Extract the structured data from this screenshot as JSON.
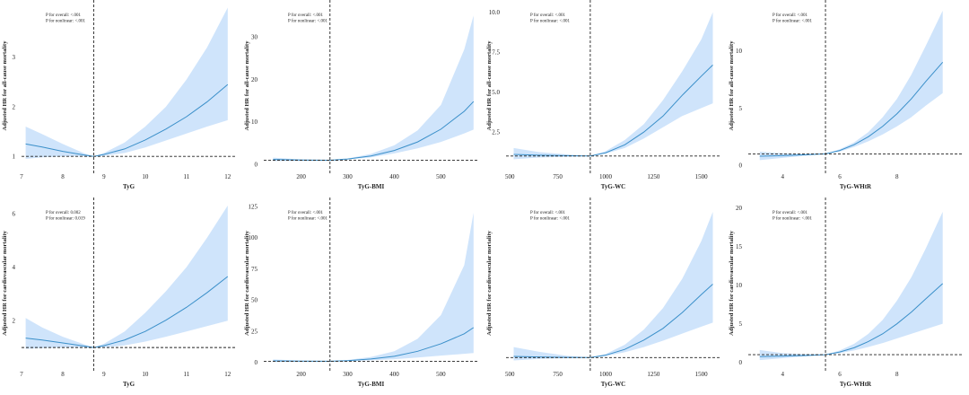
{
  "style": {
    "band_color": "#cfe4fb",
    "curve_color": "#3a8fc9",
    "line_color": "#222222",
    "background": "#ffffff"
  },
  "chart_data": [
    {
      "type": "line",
      "title": "",
      "xlabel": "TyG",
      "ylabel": "Adjusted HR for all-cause mortality",
      "xlim": [
        7,
        12.2
      ],
      "ylim": [
        0.75,
        4.1
      ],
      "xticks": [
        7,
        8,
        9,
        10,
        11,
        12
      ],
      "yticks": [
        1,
        2,
        3
      ],
      "knot": 8.75,
      "ref": 1,
      "pvalues": [
        "P for overall: <.001",
        "P for nonlinear: <.001"
      ],
      "series": [
        {
          "name": "HR",
          "x": [
            7.1,
            7.5,
            8.0,
            8.5,
            8.75,
            9.0,
            9.5,
            10.0,
            10.5,
            11.0,
            11.5,
            12.0
          ],
          "y": [
            1.25,
            1.19,
            1.1,
            1.03,
            1.0,
            1.04,
            1.15,
            1.33,
            1.55,
            1.8,
            2.1,
            2.45
          ]
        },
        {
          "name": "Lower 95% CI",
          "x": [
            7.1,
            7.5,
            8.0,
            8.5,
            8.75,
            9.0,
            9.5,
            10.0,
            10.5,
            11.0,
            11.5,
            12.0
          ],
          "y": [
            0.95,
            0.98,
            1.0,
            1.0,
            1.0,
            1.01,
            1.07,
            1.18,
            1.32,
            1.46,
            1.6,
            1.73
          ]
        },
        {
          "name": "Upper 95% CI",
          "x": [
            7.1,
            7.5,
            8.0,
            8.5,
            8.75,
            9.0,
            9.5,
            10.0,
            10.5,
            11.0,
            11.5,
            12.0
          ],
          "y": [
            1.6,
            1.45,
            1.25,
            1.07,
            1.0,
            1.07,
            1.28,
            1.6,
            2.0,
            2.55,
            3.2,
            4.0
          ]
        }
      ]
    },
    {
      "type": "line",
      "title": "",
      "xlabel": "TyG-BMI",
      "ylabel": "Adjusted HR for all-cause mortality",
      "xlim": [
        120,
        580
      ],
      "ylim": [
        -1,
        38
      ],
      "xticks": [
        200,
        300,
        400,
        500
      ],
      "yticks": [
        0,
        10,
        20,
        30
      ],
      "knot": 262,
      "ref": 1,
      "pvalues": [
        "P for overall: <.001",
        "P for nonlinear: <.001"
      ],
      "series": [
        {
          "name": "HR",
          "x": [
            140,
            200,
            262,
            300,
            350,
            400,
            450,
            500,
            550,
            570
          ],
          "y": [
            1.2,
            1.05,
            1.0,
            1.3,
            2.0,
            3.3,
            5.3,
            8.3,
            12.5,
            14.8
          ]
        },
        {
          "name": "Lower 95% CI",
          "x": [
            140,
            200,
            262,
            300,
            350,
            400,
            450,
            500,
            550,
            570
          ],
          "y": [
            0.8,
            0.9,
            1.0,
            1.2,
            1.7,
            2.6,
            3.8,
            5.3,
            7.3,
            8.2
          ]
        },
        {
          "name": "Upper 95% CI",
          "x": [
            140,
            200,
            262,
            300,
            350,
            400,
            450,
            500,
            550,
            570
          ],
          "y": [
            1.6,
            1.2,
            1.0,
            1.4,
            2.5,
            4.5,
            8.0,
            14.0,
            27.0,
            35.0
          ]
        }
      ]
    },
    {
      "type": "line",
      "title": "",
      "xlabel": "TyG-WC",
      "ylabel": "Adjusted HR for all-cause mortality",
      "xlim": [
        480,
        1600
      ],
      "ylim": [
        0.2,
        10.6
      ],
      "xticks": [
        500,
        750,
        1000,
        1250,
        1500
      ],
      "yticks": [
        2.5,
        5.0,
        7.5,
        10.0
      ],
      "knot": 920,
      "ref": 1,
      "pvalues": [
        "P for overall: <.001",
        "P for nonlinear: <.001"
      ],
      "series": [
        {
          "name": "HR",
          "x": [
            520,
            650,
            800,
            920,
            1000,
            1100,
            1200,
            1300,
            1400,
            1500,
            1560
          ],
          "y": [
            1.1,
            1.05,
            1.02,
            1.0,
            1.2,
            1.7,
            2.5,
            3.5,
            4.8,
            6.0,
            6.7
          ]
        },
        {
          "name": "Lower 95% CI",
          "x": [
            520,
            650,
            800,
            920,
            1000,
            1100,
            1200,
            1300,
            1400,
            1500,
            1560
          ],
          "y": [
            0.8,
            0.9,
            0.95,
            1.0,
            1.15,
            1.5,
            2.1,
            2.8,
            3.5,
            4.0,
            4.3
          ]
        },
        {
          "name": "Upper 95% CI",
          "x": [
            520,
            650,
            800,
            920,
            1000,
            1100,
            1200,
            1300,
            1400,
            1500,
            1560
          ],
          "y": [
            1.5,
            1.25,
            1.1,
            1.0,
            1.3,
            2.0,
            3.0,
            4.5,
            6.3,
            8.3,
            10.0
          ]
        }
      ]
    },
    {
      "type": "line",
      "title": "",
      "xlabel": "TyG-WHtR",
      "ylabel": "Adjusted HR for all-cause mortality",
      "xlim": [
        2.8,
        10.3
      ],
      "ylim": [
        -0.3,
        14.2
      ],
      "xticks": [
        4,
        6,
        8
      ],
      "yticks": [
        0,
        5,
        10
      ],
      "knot": 5.5,
      "ref": 1,
      "pvalues": [
        "P for overall: <.001",
        "P for nonlinear: <.001"
      ],
      "series": [
        {
          "name": "HR",
          "x": [
            3.2,
            4.0,
            4.8,
            5.5,
            6.0,
            6.5,
            7.0,
            7.5,
            8.0,
            8.5,
            9.0,
            9.6
          ],
          "y": [
            0.8,
            0.85,
            0.92,
            1.0,
            1.3,
            1.8,
            2.5,
            3.4,
            4.5,
            5.8,
            7.3,
            9.0
          ]
        },
        {
          "name": "Lower 95% CI",
          "x": [
            3.2,
            4.0,
            4.8,
            5.5,
            6.0,
            6.5,
            7.0,
            7.5,
            8.0,
            8.5,
            9.0,
            9.6
          ],
          "y": [
            0.45,
            0.65,
            0.85,
            1.0,
            1.2,
            1.6,
            2.1,
            2.7,
            3.4,
            4.2,
            5.2,
            6.3
          ]
        },
        {
          "name": "Upper 95% CI",
          "x": [
            3.2,
            4.0,
            4.8,
            5.5,
            6.0,
            6.5,
            7.0,
            7.5,
            8.0,
            8.5,
            9.0,
            9.6
          ],
          "y": [
            1.2,
            1.05,
            1.0,
            1.0,
            1.4,
            2.0,
            2.9,
            4.2,
            5.8,
            7.9,
            10.4,
            13.5
          ]
        }
      ]
    },
    {
      "type": "line",
      "title": "",
      "xlabel": "TyG",
      "ylabel": "Adjusted HR for cardiovascular mortality",
      "xlim": [
        7,
        12.2
      ],
      "ylim": [
        0.3,
        6.5
      ],
      "xticks": [
        7,
        8,
        9,
        10,
        11,
        12
      ],
      "yticks": [
        2,
        4,
        6
      ],
      "knot": 8.75,
      "ref": 1,
      "pvalues": [
        "P for overall: 0.002",
        "P for nonlinear: 0.019"
      ],
      "series": [
        {
          "name": "HR",
          "x": [
            7.1,
            7.5,
            8.0,
            8.5,
            8.75,
            9.0,
            9.5,
            10.0,
            10.5,
            11.0,
            11.5,
            12.0
          ],
          "y": [
            1.35,
            1.28,
            1.17,
            1.06,
            1.0,
            1.07,
            1.28,
            1.6,
            2.02,
            2.5,
            3.05,
            3.65
          ]
        },
        {
          "name": "Lower 95% CI",
          "x": [
            7.1,
            7.5,
            8.0,
            8.5,
            8.75,
            9.0,
            9.5,
            10.0,
            10.5,
            11.0,
            11.5,
            12.0
          ],
          "y": [
            0.95,
            0.98,
            1.0,
            1.0,
            1.0,
            1.0,
            1.08,
            1.22,
            1.4,
            1.6,
            1.8,
            2.0
          ]
        },
        {
          "name": "Upper 95% CI",
          "x": [
            7.1,
            7.5,
            8.0,
            8.5,
            8.75,
            9.0,
            9.5,
            10.0,
            10.5,
            11.0,
            11.5,
            12.0
          ],
          "y": [
            2.1,
            1.75,
            1.4,
            1.13,
            1.0,
            1.14,
            1.6,
            2.3,
            3.1,
            4.0,
            5.1,
            6.3
          ]
        }
      ]
    },
    {
      "type": "line",
      "title": "",
      "xlabel": "TyG-BMI",
      "ylabel": "Adjusted HR for cardiovascular mortality",
      "xlim": [
        120,
        580
      ],
      "ylim": [
        -3,
        130
      ],
      "xticks": [
        200,
        300,
        400,
        500
      ],
      "yticks": [
        0,
        25,
        50,
        75,
        100,
        125
      ],
      "knot": 262,
      "ref": 1,
      "pvalues": [
        "P for overall: <.001",
        "P for nonlinear: <.001"
      ],
      "series": [
        {
          "name": "HR",
          "x": [
            140,
            200,
            262,
            300,
            350,
            400,
            450,
            500,
            550,
            570
          ],
          "y": [
            1.3,
            1.1,
            1.0,
            1.5,
            2.8,
            5.0,
            9.0,
            15.0,
            23.0,
            28.0
          ]
        },
        {
          "name": "Lower 95% CI",
          "x": [
            140,
            200,
            262,
            300,
            350,
            400,
            450,
            500,
            550,
            570
          ],
          "y": [
            0.5,
            0.8,
            1.0,
            1.2,
            1.8,
            2.7,
            4.0,
            5.5,
            7.0,
            7.6
          ]
        },
        {
          "name": "Upper 95% CI",
          "x": [
            140,
            200,
            262,
            300,
            350,
            400,
            450,
            500,
            550,
            570
          ],
          "y": [
            2.5,
            1.5,
            1.0,
            2.0,
            4.5,
            9.0,
            19.0,
            38.0,
            78.0,
            120.0
          ]
        }
      ]
    },
    {
      "type": "line",
      "title": "",
      "xlabel": "TyG-WC",
      "ylabel": "Adjusted HR for cardiovascular mortality",
      "xlim": [
        480,
        1600
      ],
      "ylim": [
        -0.5,
        28
      ],
      "xticks": [
        500,
        750,
        1000,
        1250,
        1500
      ],
      "yticks": [],
      "knot": 920,
      "ref": 1,
      "pvalues": [
        "P for overall: <.001",
        "P for nonlinear: <.001"
      ],
      "series": [
        {
          "name": "HR",
          "x": [
            520,
            650,
            800,
            920,
            1000,
            1100,
            1200,
            1300,
            1400,
            1500,
            1560
          ],
          "y": [
            1.2,
            1.1,
            1.03,
            1.0,
            1.4,
            2.4,
            4.0,
            6.0,
            8.7,
            11.8,
            13.6
          ]
        },
        {
          "name": "Lower 95% CI",
          "x": [
            520,
            650,
            800,
            920,
            1000,
            1100,
            1200,
            1300,
            1400,
            1500,
            1560
          ],
          "y": [
            0.5,
            0.75,
            0.9,
            1.0,
            1.25,
            1.9,
            2.8,
            3.9,
            5.1,
            6.3,
            7.0
          ]
        },
        {
          "name": "Upper 95% CI",
          "x": [
            520,
            650,
            800,
            920,
            1000,
            1100,
            1200,
            1300,
            1400,
            1500,
            1560
          ],
          "y": [
            2.8,
            2.0,
            1.3,
            1.0,
            1.6,
            3.2,
            5.8,
            9.5,
            14.5,
            21.0,
            26.0
          ]
        }
      ]
    },
    {
      "type": "line",
      "title": "",
      "xlabel": "TyG-WHtR",
      "ylabel": "Adjusted HR for cardiovascular mortality",
      "xlim": [
        2.8,
        10.3
      ],
      "ylim": [
        -0.5,
        21
      ],
      "xticks": [
        4,
        6,
        8
      ],
      "yticks": [
        0,
        5,
        10,
        15,
        20
      ],
      "knot": 5.5,
      "ref": 1,
      "pvalues": [
        "P for overall: <.001",
        "P for nonlinear: <.001"
      ],
      "series": [
        {
          "name": "HR",
          "x": [
            3.2,
            4.0,
            4.8,
            5.5,
            6.0,
            6.5,
            7.0,
            7.5,
            8.0,
            8.5,
            9.0,
            9.6
          ],
          "y": [
            0.75,
            0.82,
            0.9,
            1.0,
            1.35,
            1.9,
            2.7,
            3.7,
            5.0,
            6.5,
            8.2,
            10.2
          ]
        },
        {
          "name": "Lower 95% CI",
          "x": [
            3.2,
            4.0,
            4.8,
            5.5,
            6.0,
            6.5,
            7.0,
            7.5,
            8.0,
            8.5,
            9.0,
            9.6
          ],
          "y": [
            0.3,
            0.55,
            0.8,
            1.0,
            1.2,
            1.55,
            2.0,
            2.5,
            3.1,
            3.7,
            4.3,
            5.0
          ]
        },
        {
          "name": "Upper 95% CI",
          "x": [
            3.2,
            4.0,
            4.8,
            5.5,
            6.0,
            6.5,
            7.0,
            7.5,
            8.0,
            8.5,
            9.0,
            9.6
          ],
          "y": [
            1.6,
            1.2,
            1.05,
            1.0,
            1.55,
            2.4,
            3.7,
            5.5,
            8.0,
            11.0,
            14.7,
            19.5
          ]
        }
      ]
    }
  ]
}
